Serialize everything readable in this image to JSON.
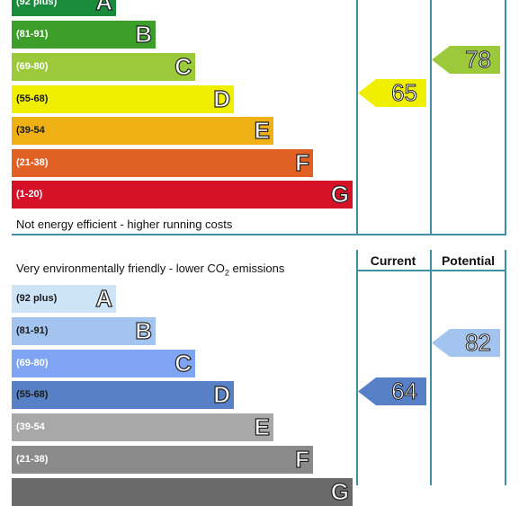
{
  "energy": {
    "bands": [
      {
        "range": "(92 plus)",
        "letter": "A",
        "color": "#1a8b3a"
      },
      {
        "range": "(81-91)",
        "letter": "B",
        "color": "#3d9f2a"
      },
      {
        "range": "(69-80)",
        "letter": "C",
        "color": "#9bc93a"
      },
      {
        "range": "(55-68)",
        "letter": "D",
        "color": "#f1ef00"
      },
      {
        "range": "(39-54",
        "letter": "E",
        "color": "#efb013"
      },
      {
        "range": "(21-38)",
        "letter": "F",
        "color": "#e16125"
      },
      {
        "range": "(1-20)",
        "letter": "G",
        "color": "#d51128"
      }
    ],
    "bottom_caption": "Not energy efficient - higher running costs",
    "current": {
      "value": "65",
      "color": "#f1ef00"
    },
    "potential": {
      "value": "78",
      "color": "#9bc93a"
    }
  },
  "environment": {
    "top_caption_prefix": "Very environmentally friendly - lower CO",
    "top_caption_sub": "2",
    "top_caption_suffix": " emissions",
    "header_current": "Current",
    "header_potential": "Potential",
    "bands": [
      {
        "range": "(92 plus)",
        "letter": "A",
        "color": "#cde3f6"
      },
      {
        "range": "(81-91)",
        "letter": "B",
        "color": "#a3c4ef"
      },
      {
        "range": "(69-80)",
        "letter": "C",
        "color": "#7ea4f3"
      },
      {
        "range": "(55-68)",
        "letter": "D",
        "color": "#5880c7"
      },
      {
        "range": "(39-54",
        "letter": "E",
        "color": "#a8a8a8"
      },
      {
        "range": "(21-38)",
        "letter": "F",
        "color": "#8a8a8a"
      },
      {
        "range": "",
        "letter": "G",
        "color": "#6a6a6a"
      }
    ],
    "current": {
      "value": "64",
      "color": "#5880c7"
    },
    "potential": {
      "value": "82",
      "color": "#a3c4ef"
    }
  }
}
